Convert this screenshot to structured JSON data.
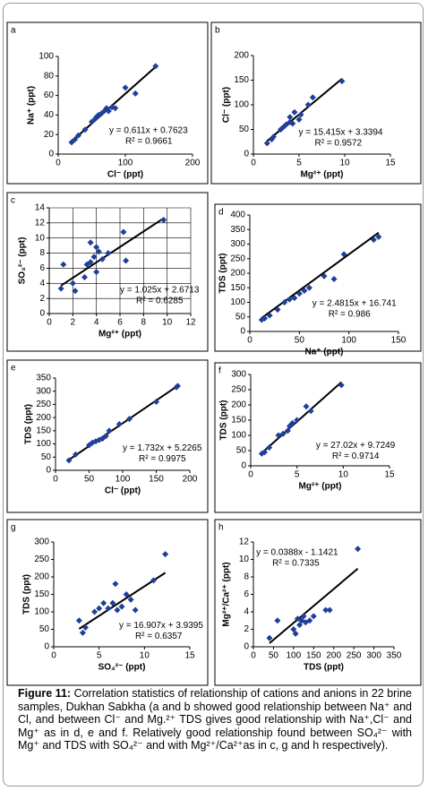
{
  "chart_data": [
    {
      "type": "scatter",
      "panel": "a",
      "xlabel": "Cl⁻ (ppt)",
      "ylabel": "Na⁺ (ppt)",
      "xlim": [
        0,
        200
      ],
      "ylim": [
        0,
        100
      ],
      "xticks": [
        0,
        100,
        200
      ],
      "yticks": [
        0,
        20,
        40,
        60,
        80,
        100
      ],
      "color": "#1f3f99",
      "grid": false,
      "x": [
        20,
        25,
        30,
        40,
        50,
        55,
        57,
        60,
        65,
        70,
        72,
        75,
        80,
        85,
        100,
        115,
        145
      ],
      "y": [
        12,
        15,
        19,
        25,
        33,
        36,
        38,
        40,
        42,
        45,
        47,
        44,
        48,
        47,
        68,
        62,
        90
      ],
      "fit": {
        "slope": 0.611,
        "intercept": 0.7623,
        "label": "y = 0.611x + 0.7623"
      },
      "r_squared_label": "R² = 0.9661"
    },
    {
      "type": "scatter",
      "panel": "b",
      "xlabel": "Mg²⁺ (ppt)",
      "ylabel": "Cl⁻ (ppt)",
      "xlim": [
        0,
        15
      ],
      "ylim": [
        0,
        200
      ],
      "xticks": [
        0,
        5,
        10,
        15
      ],
      "yticks": [
        0,
        50,
        100,
        150,
        200
      ],
      "color": "#1f3f99",
      "grid": false,
      "x": [
        1.5,
        2,
        2.2,
        3,
        3.3,
        3.6,
        4,
        4,
        4.3,
        4.5,
        5,
        5.2,
        6,
        6.5,
        9.7
      ],
      "y": [
        22,
        30,
        35,
        50,
        55,
        60,
        65,
        75,
        62,
        85,
        70,
        80,
        100,
        115,
        148
      ],
      "fit": {
        "slope": 15.415,
        "intercept": 3.3394,
        "label": "y = 15.415x + 3.3394"
      },
      "r_squared_label": "R² = 0.9572"
    },
    {
      "type": "scatter",
      "panel": "c",
      "xlabel": "Mg²⁺ (ppt)",
      "ylabel": "SO₄²⁻ (ppt)",
      "xlim": [
        0,
        12
      ],
      "ylim": [
        0,
        14
      ],
      "xticks": [
        0,
        2,
        4,
        6,
        8,
        10,
        12
      ],
      "yticks": [
        0,
        2,
        4,
        6,
        8,
        10,
        12,
        14
      ],
      "color": "#1f3f99",
      "grid": true,
      "x": [
        1,
        1.2,
        2,
        2.2,
        3,
        3.2,
        3.5,
        3.5,
        3.8,
        4,
        4,
        4.2,
        4.5,
        5,
        6.3,
        6.5,
        9.7
      ],
      "y": [
        3.3,
        6.5,
        4,
        3,
        4.8,
        6.5,
        9.4,
        6.8,
        7.5,
        5.5,
        8.8,
        8.2,
        7.2,
        8,
        10.8,
        7,
        12.4
      ],
      "fit": {
        "slope": 1.025,
        "intercept": 2.6713,
        "label": "y = 1.025x + 2.6713"
      },
      "r_squared_label": "R² = 0.6285"
    },
    {
      "type": "scatter",
      "panel": "d",
      "xlabel": "Na⁺ (ppt)",
      "ylabel": "TDS (ppt)",
      "xlim": [
        0,
        150
      ],
      "ylim": [
        0,
        400
      ],
      "xticks": [
        0,
        50,
        100,
        150
      ],
      "yticks": [
        0,
        50,
        100,
        150,
        200,
        250,
        300,
        350,
        400
      ],
      "color": "#1f3f99",
      "grid": false,
      "x": [
        12,
        15,
        20,
        28,
        35,
        40,
        45,
        50,
        55,
        60,
        75,
        85,
        95,
        125,
        130
      ],
      "y": [
        40,
        45,
        55,
        75,
        100,
        110,
        115,
        130,
        140,
        150,
        190,
        180,
        265,
        315,
        325
      ],
      "fit": {
        "slope": 2.4815,
        "intercept": 16.741,
        "label": "y = 2.4815x + 16.741"
      },
      "r_squared_label": "R² = 0.986"
    },
    {
      "type": "scatter",
      "panel": "e",
      "xlabel": "Cl⁻ (ppt)",
      "ylabel": "TDS (ppt)",
      "xlim": [
        0,
        200
      ],
      "ylim": [
        0,
        350
      ],
      "xticks": [
        0,
        50,
        100,
        150,
        200
      ],
      "yticks": [
        0,
        50,
        100,
        150,
        200,
        250,
        300,
        350
      ],
      "color": "#1f3f99",
      "grid": false,
      "x": [
        20,
        30,
        50,
        55,
        60,
        65,
        70,
        75,
        80,
        95,
        110,
        150,
        180,
        182
      ],
      "y": [
        38,
        60,
        95,
        105,
        110,
        115,
        120,
        130,
        150,
        175,
        195,
        260,
        315,
        320
      ],
      "fit": {
        "slope": 1.732,
        "intercept": 5.2265,
        "label": "y = 1.732x + 5.2265"
      },
      "r_squared_label": "R² = 0.9975"
    },
    {
      "type": "scatter",
      "panel": "f",
      "xlabel": "Mg²⁺ (ppt)",
      "ylabel": "TDS (ppt)",
      "xlim": [
        0,
        15
      ],
      "ylim": [
        0,
        300
      ],
      "xticks": [
        0,
        5,
        10,
        15
      ],
      "yticks": [
        0,
        50,
        100,
        150,
        200,
        250,
        300
      ],
      "color": "#1f3f99",
      "grid": false,
      "x": [
        1.2,
        1.5,
        2,
        3,
        3.5,
        4,
        4.2,
        4.5,
        5,
        6,
        6.5,
        9.8
      ],
      "y": [
        40,
        45,
        60,
        100,
        105,
        115,
        130,
        140,
        150,
        195,
        180,
        265
      ],
      "fit": {
        "slope": 27.02,
        "intercept": 9.7249,
        "label": "y = 27.02x + 9.7249"
      },
      "r_squared_label": "R² = 0.9714"
    },
    {
      "type": "scatter",
      "panel": "g",
      "xlabel": "SO₄²⁻ (ppt)",
      "ylabel": "TDS (ppt)",
      "xlim": [
        0,
        15
      ],
      "ylim": [
        0,
        300
      ],
      "xticks": [
        0,
        5,
        10,
        15
      ],
      "yticks": [
        0,
        50,
        100,
        150,
        200,
        250,
        300
      ],
      "color": "#1f3f99",
      "grid": false,
      "x": [
        2.8,
        3.2,
        3.5,
        4.5,
        5,
        5.5,
        6,
        6.5,
        6.8,
        7,
        7.5,
        8,
        8.5,
        9,
        11,
        12.3
      ],
      "y": [
        75,
        40,
        55,
        100,
        110,
        125,
        110,
        125,
        180,
        105,
        115,
        150,
        135,
        105,
        190,
        265
      ],
      "fit": {
        "slope": 16.907,
        "intercept": 3.9395,
        "label": "y = 16.907x + 3.9395"
      },
      "r_squared_label": "R² = 0.6357"
    },
    {
      "type": "scatter",
      "panel": "h",
      "xlabel": "TDS (ppt)",
      "ylabel": "Mg²⁺/Ca²⁺ (ppt)",
      "xlim": [
        0,
        350
      ],
      "ylim": [
        0,
        12
      ],
      "xticks": [
        0,
        50,
        100,
        150,
        200,
        250,
        300,
        350
      ],
      "yticks": [
        0,
        2,
        4,
        6,
        8,
        10,
        12
      ],
      "color": "#1f3f99",
      "grid": false,
      "x": [
        40,
        60,
        100,
        105,
        110,
        115,
        120,
        125,
        130,
        140,
        150,
        180,
        190,
        260
      ],
      "y": [
        1,
        3,
        2,
        1.5,
        3.2,
        2.5,
        3,
        3.5,
        2.8,
        3,
        3.5,
        4.2,
        4.2,
        11.2
      ],
      "fit": {
        "slope": 0.0388,
        "intercept": -1.1421,
        "label": "y = 0.0388x - 1.1421"
      },
      "r_squared_label": "R² = 0.7335"
    }
  ],
  "caption": {
    "label": "Figure 11:",
    "text": "Correlation statistics of relationship of cations and anions in 22 brine samples, Dukhan Sabkha (a and b showed good relationship between Na⁺ and Cl, and between Cl⁻ and Mg.²⁺ TDS gives good relationship with Na⁺,Cl⁻ and Mg⁺ as in d, e and f. Relatively good relationship found between SO₄²⁻ with Mg⁺ and TDS with SO₄²⁻ and with Mg²⁺/Ca²⁺as in c, g and h respectively)."
  }
}
